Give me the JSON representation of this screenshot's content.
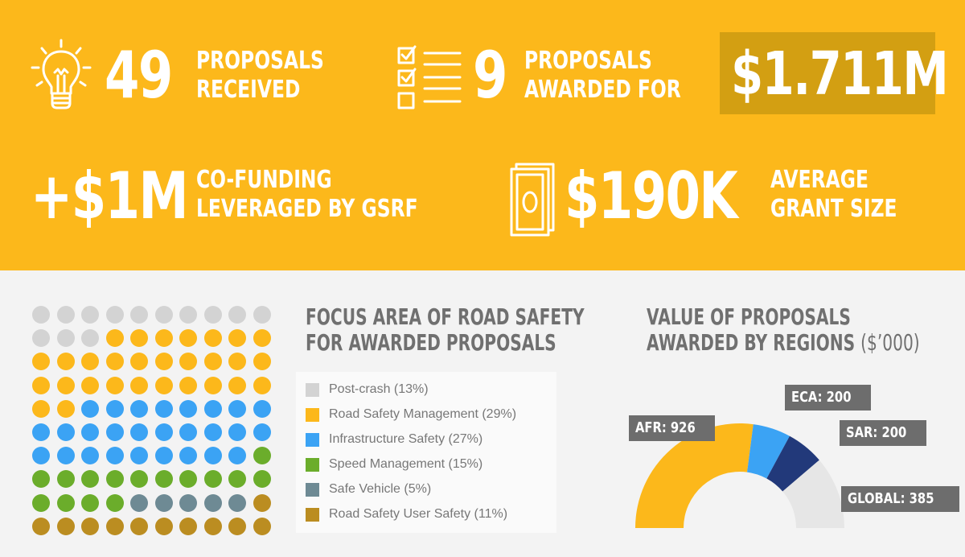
{
  "stats": {
    "proposals_received": {
      "value": "49",
      "line1": "PROPOSALS",
      "line2": "RECEIVED",
      "icon": "lightbulb-icon"
    },
    "proposals_awarded": {
      "value": "9",
      "line1": "PROPOSALS",
      "line2": "AWARDED FOR",
      "icon": "checklist-icon"
    },
    "total_awarded": {
      "value": "$1.711M"
    },
    "co_funding": {
      "value": "+$1M",
      "line1": "CO-FUNDING",
      "line2": "LEVERAGED BY GSRF"
    },
    "average_grant": {
      "value": "$190K",
      "line1": "AVERAGE",
      "line2": "GRANT SIZE",
      "icon": "money-bill-icon"
    }
  },
  "focus_area": {
    "title_line1": "FOCUS AREA OF ROAD SAFETY",
    "title_line2": "FOR AWARDED PROPOSALS",
    "items": [
      {
        "label": "Post-crash (13%)",
        "count": 13,
        "color": "#d3d3d3"
      },
      {
        "label": "Road Safety Management (29%)",
        "count": 29,
        "color": "#fcb81b"
      },
      {
        "label": "Infrastructure Safety (27%)",
        "count": 27,
        "color": "#3ba3f4"
      },
      {
        "label": "Speed Management (15%)",
        "count": 15,
        "color": "#6bad2b"
      },
      {
        "label": "Safe Vehicle (5%)",
        "count": 5,
        "color": "#6e8a94"
      },
      {
        "label": "Road Safety User Safety (11%)",
        "count": 11,
        "color": "#bb8d21"
      }
    ]
  },
  "regions": {
    "title_line1": "VALUE OF PROPOSALS",
    "title_line2": "AWARDED BY REGIONS",
    "unit": "($’000)",
    "chart_data": {
      "type": "pie",
      "subtype": "half-donut",
      "slices": [
        {
          "name": "AFR",
          "value": 926,
          "label": "AFR: 926",
          "color": "#fcb81b"
        },
        {
          "name": "ECA",
          "value": 200,
          "label": "ECA: 200",
          "color": "#3ba3f4"
        },
        {
          "name": "SAR",
          "value": 200,
          "label": "SAR: 200",
          "color": "#22397a"
        },
        {
          "name": "GLOBAL",
          "value": 385,
          "label": "GLOBAL: 385",
          "color": "#e6e6e6"
        }
      ]
    }
  }
}
